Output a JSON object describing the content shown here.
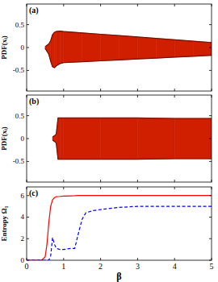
{
  "chart_data": [
    {
      "type": "area",
      "title": "(a)",
      "ylabel": "PDF(xᵢ)",
      "color": "#d01e00",
      "x": [
        0.5,
        0.55,
        0.6,
        0.65,
        0.7,
        0.75,
        0.8,
        0.9,
        1,
        1.5,
        2,
        2.5,
        3,
        3.5,
        4,
        4.5,
        5
      ],
      "series": [
        {
          "values": [
            0.02,
            0.05,
            0.08,
            0.15,
            0.28,
            0.33,
            0.35,
            0.36,
            0.35,
            0.32,
            0.29,
            0.26,
            0.23,
            0.2,
            0.17,
            0.14,
            0.11
          ]
        },
        {
          "values": [
            -0.02,
            -0.08,
            -0.15,
            -0.3,
            -0.42,
            -0.44,
            -0.4,
            -0.35,
            -0.33,
            -0.31,
            -0.29,
            -0.27,
            -0.25,
            -0.23,
            -0.21,
            -0.19,
            -0.17
          ]
        }
      ],
      "xlim": [
        0,
        5
      ],
      "xticks": [
        0,
        1,
        2,
        3,
        4,
        5
      ],
      "ylim": [
        -0.95,
        0.95
      ],
      "yticks": [
        -0.5,
        0,
        0.5
      ],
      "tick_labels": "y"
    },
    {
      "type": "area",
      "title": "(b)",
      "ylabel": "PDF(xᵢ)",
      "color": "#d01e00",
      "x": [
        0.7,
        0.75,
        0.8,
        0.85,
        0.9,
        1,
        2,
        3,
        4,
        5
      ],
      "series": [
        {
          "values": [
            0.03,
            0.06,
            0.1,
            0.45,
            0.45,
            0.45,
            0.45,
            0.45,
            0.44,
            0.44
          ]
        },
        {
          "values": [
            -0.03,
            -0.06,
            -0.1,
            -0.45,
            -0.45,
            -0.45,
            -0.45,
            -0.45,
            -0.44,
            -0.44
          ]
        }
      ],
      "xlim": [
        0,
        5
      ],
      "xticks": [
        0,
        1,
        2,
        3,
        4,
        5
      ],
      "ylim": [
        -0.95,
        0.95
      ],
      "yticks": [
        -0.5,
        0,
        0.5
      ],
      "tick_labels": "y"
    },
    {
      "type": "line",
      "title": "(c)",
      "ylabel": "Entropy Ω₁",
      "xlabel": "β",
      "x": [
        0,
        0.4,
        0.5,
        0.55,
        0.6,
        0.65,
        0.7,
        0.75,
        0.8,
        0.9,
        1,
        1.2,
        1.3,
        1.4,
        1.5,
        1.6,
        1.8,
        2,
        2.5,
        3,
        4,
        5
      ],
      "series": [
        {
          "color": "#ff0000",
          "line_style": "solid",
          "values": [
            0,
            0,
            0.3,
            1.5,
            3.5,
            5,
            5.6,
            5.8,
            5.9,
            5.92,
            5.95,
            5.97,
            5.98,
            6,
            6,
            6,
            6,
            6,
            6,
            6,
            6,
            6
          ]
        },
        {
          "color": "#0000ff",
          "line_style": "dashed",
          "values": [
            0,
            0,
            0,
            0,
            0,
            0.4,
            2.1,
            1.5,
            1.1,
            1,
            1,
            1.1,
            1.1,
            2.5,
            3.8,
            4.4,
            4.6,
            4.7,
            4.9,
            5,
            5,
            5
          ]
        }
      ],
      "xlim": [
        0,
        5
      ],
      "xticks": [
        0,
        1,
        2,
        3,
        4,
        5
      ],
      "ylim": [
        0,
        6.8
      ],
      "yticks": [
        0,
        2,
        4,
        6
      ]
    }
  ]
}
